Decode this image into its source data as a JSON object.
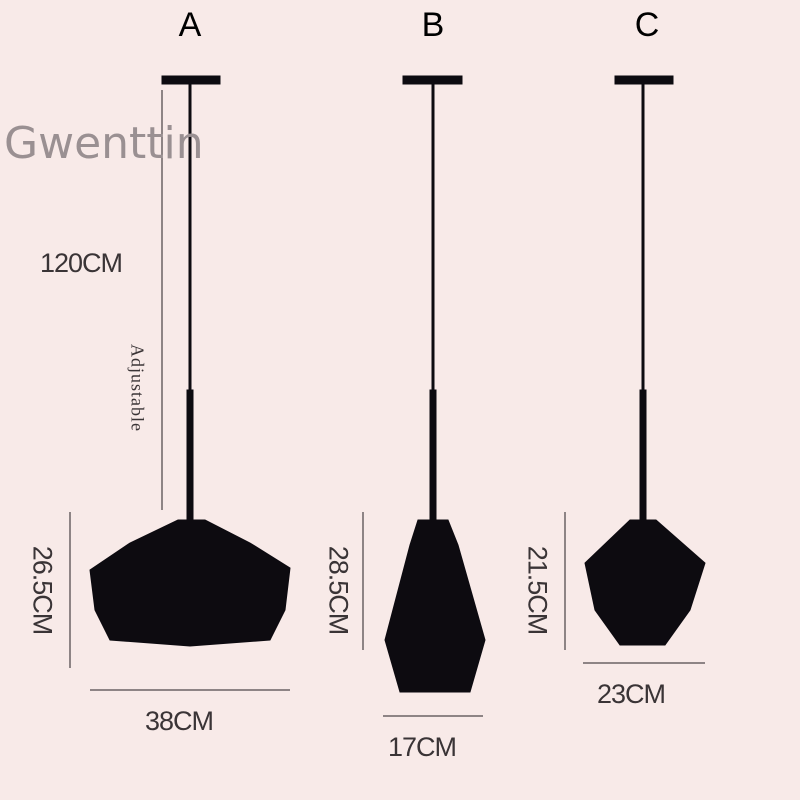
{
  "watermark": "Gwenttin",
  "lamps": [
    {
      "label": "A",
      "height": "26.5CM",
      "width": "38CM",
      "cord": "120CM",
      "cord_note": "Adjustable"
    },
    {
      "label": "B",
      "height": "28.5CM",
      "width": "17CM"
    },
    {
      "label": "C",
      "height": "21.5CM",
      "width": "23CM"
    }
  ],
  "colors": {
    "background": "#f8eae8",
    "lamp": "#0d0b10",
    "text": "#3a3436"
  }
}
